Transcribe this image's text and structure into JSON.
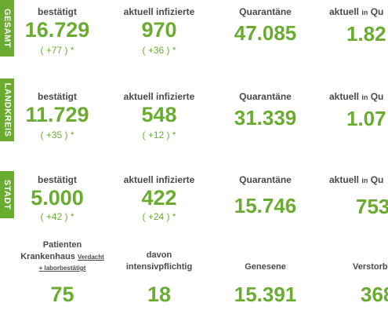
{
  "rows": [
    {
      "tab": "GESAMT",
      "bestaetigt_label": "bestätigt",
      "bestaetigt": "16.729",
      "bestaetigt_delta": "( +77 ) *",
      "aktuell_label": "aktuell infizierte",
      "aktuell": "970",
      "aktuell_delta": "( +36 ) *",
      "quarantaene_label": "Quarantäne",
      "quarantaene": "47.085",
      "aktuell_q_label_a": "aktuell",
      "aktuell_q_label_b": "in",
      "aktuell_q_label_c": "Qu",
      "aktuell_q": "1.82"
    },
    {
      "tab": "LANDKREIS",
      "bestaetigt_label": "bestätigt",
      "bestaetigt": "11.729",
      "bestaetigt_delta": "( +35 ) *",
      "aktuell_label": "aktuell infizierte",
      "aktuell": "548",
      "aktuell_delta": "( +12 ) *",
      "quarantaene_label": "Quarantäne",
      "quarantaene": "31.339",
      "aktuell_q_label_a": "aktuell",
      "aktuell_q_label_b": "in",
      "aktuell_q_label_c": "Qu",
      "aktuell_q": "1.07"
    },
    {
      "tab": "STADT",
      "bestaetigt_label": "bestätigt",
      "bestaetigt": "5.000",
      "bestaetigt_delta": "( +42 ) *",
      "aktuell_label": "aktuell infizierte",
      "aktuell": "422",
      "aktuell_delta": "( +24 ) *",
      "quarantaene_label": "Quarantäne",
      "quarantaene": "15.746",
      "aktuell_q_label_a": "aktuell",
      "aktuell_q_label_b": "in",
      "aktuell_q_label_c": "Qu",
      "aktuell_q": "753"
    }
  ],
  "bottom": {
    "patienten_label_1": "Patienten",
    "patienten_label_2": "Krankenhaus",
    "patienten_label_verdacht": "Verdacht",
    "patienten_label_3": "+ laborbestätigt",
    "patienten": "75",
    "intensiv_label_1": "davon",
    "intensiv_label_2": "intensivpflichtig",
    "intensiv": "18",
    "genesene_label": "Genesene",
    "genesene": "15.391",
    "verstorben_label": "Verstorb",
    "verstorben": "368"
  },
  "colors": {
    "accent": "#6aac2f",
    "label": "#4a4a4a"
  }
}
